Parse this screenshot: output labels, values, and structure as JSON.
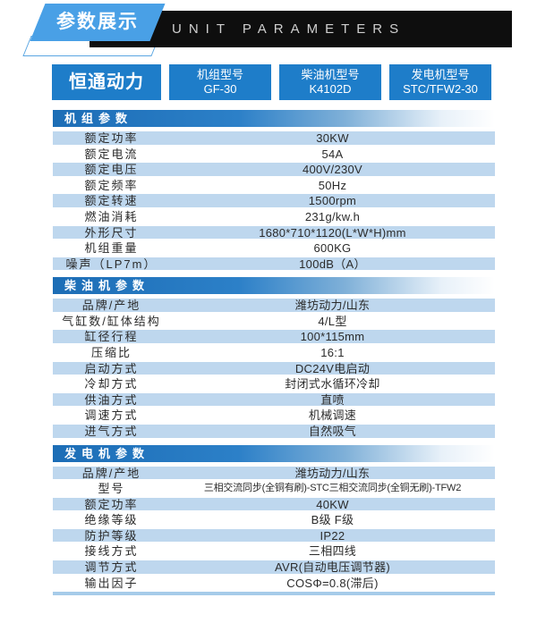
{
  "badge": {
    "label": "参数展示"
  },
  "top_bar": {
    "title": "UNIT PARAMETERS"
  },
  "brand_box": {
    "label": "恒通动力"
  },
  "model_boxes": [
    {
      "label": "机组型号",
      "value": "GF-30"
    },
    {
      "label": "柴油机型号",
      "value": "K4102D"
    },
    {
      "label": "发电机型号",
      "value": "STC/TFW2-30"
    }
  ],
  "sections": [
    {
      "title": "机组参数",
      "rows": [
        {
          "label": "额定功率",
          "value": "30KW"
        },
        {
          "label": "额定电流",
          "value": "54A"
        },
        {
          "label": "额定电压",
          "value": "400V/230V"
        },
        {
          "label": "额定频率",
          "value": "50Hz"
        },
        {
          "label": "额定转速",
          "value": "1500rpm"
        },
        {
          "label": "燃油消耗",
          "value": "231g/kw.h"
        },
        {
          "label": "外形尺寸",
          "value": "1680*710*1120(L*W*H)mm"
        },
        {
          "label": "机组重量",
          "value": "600KG"
        },
        {
          "label": "噪声（LP7m）",
          "value": "100dB（A）"
        }
      ]
    },
    {
      "title": "柴油机参数",
      "rows": [
        {
          "label": "品牌/产地",
          "value": "潍坊动力/山东"
        },
        {
          "label": "气缸数/缸体结构",
          "value": "4/L型"
        },
        {
          "label": "缸径行程",
          "value": "100*115mm"
        },
        {
          "label": "压缩比",
          "value": "16:1"
        },
        {
          "label": "启动方式",
          "value": "DC24V电启动"
        },
        {
          "label": "冷却方式",
          "value": "封闭式水循环冷却"
        },
        {
          "label": "供油方式",
          "value": "直喷"
        },
        {
          "label": "调速方式",
          "value": "机械调速"
        },
        {
          "label": "进气方式",
          "value": "自然吸气"
        }
      ]
    },
    {
      "title": "发电机参数",
      "rows": [
        {
          "label": "品牌/产地",
          "value": "潍坊动力/山东"
        },
        {
          "label": "型号",
          "value": "三相交流同步(全铜有刷)-STC三相交流同步(全铜无刷)-TFW2"
        },
        {
          "label": "额定功率",
          "value": "40KW"
        },
        {
          "label": "绝缘等级",
          "value": "B级 F级"
        },
        {
          "label": "防护等级",
          "value": "IP22"
        },
        {
          "label": "接线方式",
          "value": "三相四线"
        },
        {
          "label": "调节方式",
          "value": "AVR(自动电压调节器)"
        },
        {
          "label": "输出因子",
          "value": "COSΦ=0.8(滞后)"
        }
      ]
    }
  ],
  "colors": {
    "primary_blue": "#1e7dc9",
    "badge_blue": "#49a0e6",
    "row_light_blue": "#bed7ee",
    "section_gradient_start": "#1c6db6",
    "bar_black": "#0e0e0e"
  }
}
